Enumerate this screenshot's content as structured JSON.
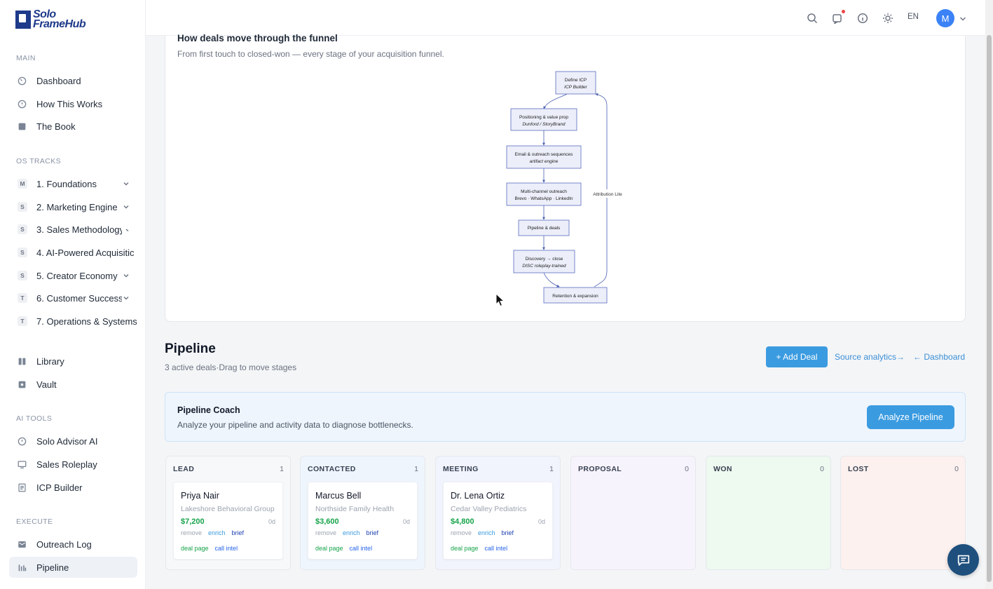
{
  "brand": {
    "line1": "Solo",
    "line2": "FrameHub"
  },
  "sidebar": {
    "sections": {
      "main": "MAIN",
      "os_tracks": "OS TRACKS",
      "ai_tools": "AI TOOLS",
      "execute": "EXECUTE"
    },
    "main_items": [
      {
        "label": "Dashboard",
        "icon": "dashboard-icon"
      },
      {
        "label": "How This Works",
        "icon": "info-icon"
      },
      {
        "label": "The Book",
        "icon": "book-icon"
      }
    ],
    "tracks": [
      {
        "badge": "M",
        "label": "1. Foundations",
        "expandable": true
      },
      {
        "badge": "S",
        "label": "2. Marketing Engine",
        "expandable": true
      },
      {
        "badge": "S",
        "label": "3. Sales Methodology",
        "expandable": true
      },
      {
        "badge": "S",
        "label": "4. AI-Powered Acquisitic",
        "expandable": false
      },
      {
        "badge": "S",
        "label": "5. Creator Economy",
        "expandable": true
      },
      {
        "badge": "T",
        "label": "6. Customer Success",
        "expandable": true
      },
      {
        "badge": "T",
        "label": "7. Operations & Systems",
        "expandable": false
      }
    ],
    "library_items": [
      {
        "label": "Library",
        "icon": "library-icon"
      },
      {
        "label": "Vault",
        "icon": "vault-icon"
      }
    ],
    "ai_items": [
      {
        "label": "Solo Advisor AI",
        "icon": "advisor-icon"
      },
      {
        "label": "Sales Roleplay",
        "icon": "monitor-icon"
      },
      {
        "label": "ICP Builder",
        "icon": "document-icon"
      }
    ],
    "execute_items": [
      {
        "label": "Outreach Log",
        "icon": "mail-icon"
      },
      {
        "label": "Pipeline",
        "icon": "bar-chart-icon",
        "active": true
      }
    ]
  },
  "topbar": {
    "lang": "EN",
    "avatar_initial": "M"
  },
  "funnel": {
    "title": "How deals move through the funnel",
    "subtitle": "From first touch to closed-won — every stage of your acquisition funnel.",
    "nodes": [
      {
        "title": "Define ICP",
        "sub": "ICP Builder"
      },
      {
        "title": "Positioning & value prop",
        "sub": "Dunford / StoryBrand"
      },
      {
        "title": "Email & outreach sequences",
        "sub": "artifact engine"
      },
      {
        "title": "Multi-channel outreach",
        "sub": "Brevo · WhatsApp · LinkedIn"
      },
      {
        "title": "Pipeline & deals",
        "sub": ""
      },
      {
        "title": "Discovery → close",
        "sub": "DISC roleplay-trained"
      },
      {
        "title": "Retention & expansion",
        "sub": ""
      }
    ],
    "loop_label": "Attribution Lite"
  },
  "pipeline": {
    "title": "Pipeline",
    "subtitle": "3 active deals·Drag to move stages",
    "add_button": "+ Add Deal",
    "source_link": "Source analytics→",
    "dashboard_link": "← Dashboard"
  },
  "coach": {
    "title": "Pipeline Coach",
    "subtitle": "Analyze your pipeline and activity data to diagnose bottlenecks.",
    "button": "Analyze Pipeline"
  },
  "columns": [
    {
      "name": "LEAD",
      "count": "1",
      "color": "#f7f8fa",
      "deal": {
        "name": "Priya Nair",
        "org": "Lakeshore Behavioral Group",
        "amount": "$7,200",
        "age": "0d"
      }
    },
    {
      "name": "CONTACTED",
      "count": "1",
      "color": "#eef5fd",
      "deal": {
        "name": "Marcus Bell",
        "org": "Northside Family Health",
        "amount": "$3,600",
        "age": "0d"
      }
    },
    {
      "name": "MEETING",
      "count": "1",
      "color": "#f1f3fd",
      "deal": {
        "name": "Dr. Lena Ortiz",
        "org": "Cedar Valley Pediatrics",
        "amount": "$4,800",
        "age": "0d"
      }
    },
    {
      "name": "PROPOSAL",
      "count": "0",
      "color": "#f7f3fc",
      "deal": null
    },
    {
      "name": "WON",
      "count": "0",
      "color": "#eef9f0",
      "deal": null
    },
    {
      "name": "LOST",
      "count": "0",
      "color": "#fdf1ef",
      "deal": null
    }
  ],
  "card_actions": {
    "remove": "remove",
    "enrich": "enrich",
    "brief": "brief",
    "deal_page": "deal page",
    "call_intel": "call intel"
  },
  "colors": {
    "accent": "#3b9be0",
    "brand": "#1e3a8a",
    "money": "#16a34a"
  }
}
